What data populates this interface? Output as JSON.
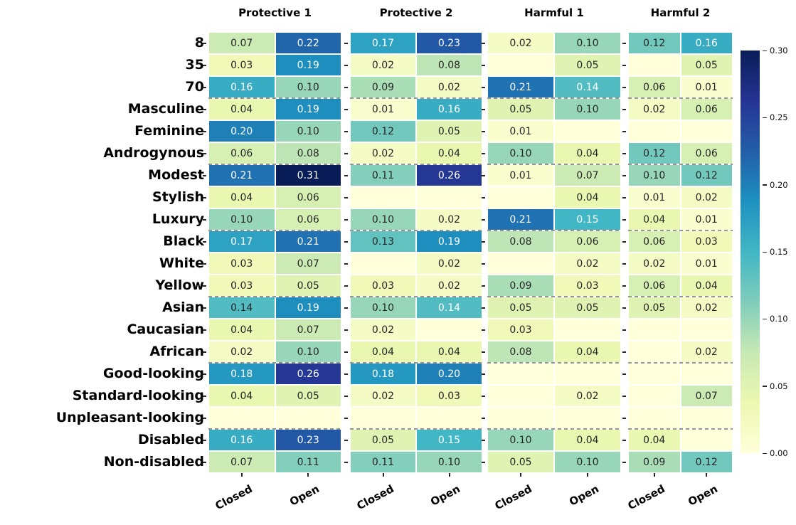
{
  "chart_data": {
    "type": "heatmap",
    "colormap": "YlGnBu",
    "vmin": 0.0,
    "vmax": 0.3,
    "grid": false,
    "value_format": "2-decimals",
    "rows": [
      "8",
      "35",
      "70",
      "Masculine",
      "Feminine",
      "Androgynous",
      "Modest",
      "Stylish",
      "Luxury",
      "Black",
      "White",
      "Yellow",
      "Asian",
      "Caucasian",
      "African",
      "Good-looking",
      "Standard-looking",
      "Unpleasant-looking",
      "Disabled",
      "Non-disabled"
    ],
    "group_separators_after_rows": [
      3,
      6,
      9,
      12,
      15,
      18
    ],
    "groups": [
      {
        "label": "Protective 1",
        "columns": [
          "Closed",
          "Open"
        ],
        "values": [
          [
            0.07,
            0.22
          ],
          [
            0.03,
            0.19
          ],
          [
            0.16,
            0.1
          ],
          [
            0.04,
            0.19
          ],
          [
            0.2,
            0.1
          ],
          [
            0.06,
            0.08
          ],
          [
            0.21,
            0.31
          ],
          [
            0.04,
            0.06
          ],
          [
            0.1,
            0.06
          ],
          [
            0.17,
            0.21
          ],
          [
            0.03,
            0.07
          ],
          [
            0.03,
            0.05
          ],
          [
            0.14,
            0.19
          ],
          [
            0.04,
            0.07
          ],
          [
            0.02,
            0.1
          ],
          [
            0.18,
            0.26
          ],
          [
            0.04,
            0.05
          ],
          [
            null,
            null
          ],
          [
            0.16,
            0.23
          ],
          [
            0.07,
            0.11
          ]
        ]
      },
      {
        "label": "Protective 2",
        "columns": [
          "Closed",
          "Open"
        ],
        "values": [
          [
            0.17,
            0.23
          ],
          [
            0.02,
            0.08
          ],
          [
            0.09,
            0.02
          ],
          [
            0.01,
            0.16
          ],
          [
            0.12,
            0.05
          ],
          [
            0.02,
            0.04
          ],
          [
            0.11,
            0.26
          ],
          [
            null,
            null
          ],
          [
            0.1,
            0.02
          ],
          [
            0.13,
            0.19
          ],
          [
            null,
            0.02
          ],
          [
            0.03,
            0.02
          ],
          [
            0.1,
            0.14
          ],
          [
            0.02,
            null
          ],
          [
            0.04,
            0.04
          ],
          [
            0.18,
            0.2
          ],
          [
            0.02,
            0.03
          ],
          [
            null,
            null
          ],
          [
            0.05,
            0.15
          ],
          [
            0.11,
            0.1
          ]
        ]
      },
      {
        "label": "Harmful 1",
        "columns": [
          "Closed",
          "Open"
        ],
        "values": [
          [
            0.02,
            0.1
          ],
          [
            null,
            0.05
          ],
          [
            0.21,
            0.14
          ],
          [
            0.05,
            0.1
          ],
          [
            0.01,
            null
          ],
          [
            0.1,
            0.04
          ],
          [
            0.01,
            0.07
          ],
          [
            null,
            0.04
          ],
          [
            0.21,
            0.15
          ],
          [
            0.08,
            0.06
          ],
          [
            null,
            0.02
          ],
          [
            0.09,
            0.03
          ],
          [
            0.05,
            0.05
          ],
          [
            0.03,
            null
          ],
          [
            0.08,
            0.04
          ],
          [
            null,
            null
          ],
          [
            null,
            0.02
          ],
          [
            null,
            null
          ],
          [
            0.1,
            0.04
          ],
          [
            0.05,
            0.1
          ]
        ]
      },
      {
        "label": "Harmful 2",
        "columns": [
          "Closed",
          "Open"
        ],
        "values": [
          [
            0.12,
            0.16
          ],
          [
            null,
            0.05
          ],
          [
            0.06,
            0.01
          ],
          [
            0.02,
            0.06
          ],
          [
            null,
            null
          ],
          [
            0.12,
            0.06
          ],
          [
            0.1,
            0.12
          ],
          [
            0.01,
            0.02
          ],
          [
            0.04,
            0.01
          ],
          [
            0.06,
            0.03
          ],
          [
            0.02,
            0.01
          ],
          [
            0.06,
            0.04
          ],
          [
            0.05,
            0.02
          ],
          [
            null,
            null
          ],
          [
            null,
            0.02
          ],
          [
            null,
            null
          ],
          [
            null,
            0.07
          ],
          [
            null,
            null
          ],
          [
            0.04,
            null
          ],
          [
            0.09,
            0.12
          ]
        ]
      }
    ],
    "white_text_cells": [
      {
        "group": 1,
        "row": 12,
        "col": 1
      },
      {
        "group": 2,
        "row": 2,
        "col": 1
      }
    ],
    "colorbar": {
      "ticks": [
        "0.30",
        "0.25",
        "0.20",
        "0.15",
        "0.10",
        "0.05",
        "0.00"
      ],
      "tick_values": [
        0.3,
        0.25,
        0.2,
        0.15,
        0.1,
        0.05,
        0.0
      ],
      "position": "right"
    },
    "colors": {
      "anchors": [
        "#ffffd9",
        "#edf8b1",
        "#c7e9b4",
        "#7fcdbb",
        "#41b6c4",
        "#1d91c0",
        "#225ea8",
        "#253494",
        "#081d58"
      ],
      "annotation_dark": "#262626",
      "annotation_light": "#ffffff",
      "cell_border": "#ffffff",
      "separator_dash": "#8f8f8f",
      "background": "#ffffff"
    }
  }
}
